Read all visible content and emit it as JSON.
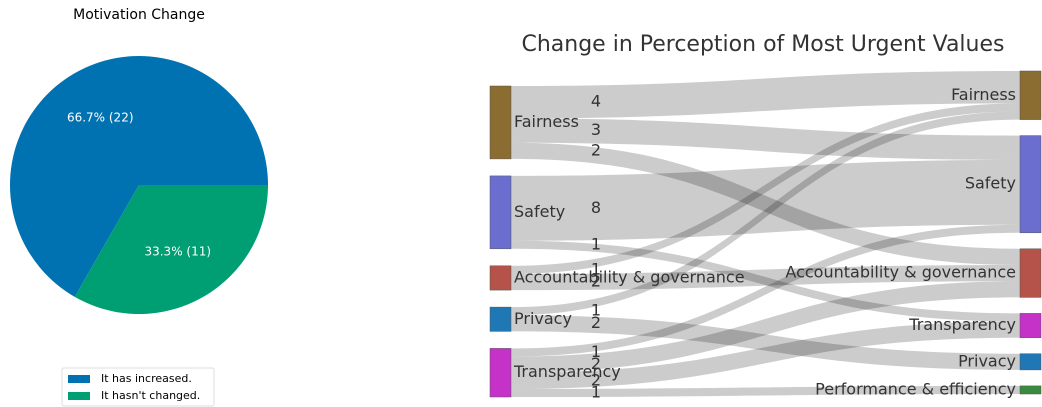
{
  "chart_data": [
    {
      "type": "pie",
      "title": "Motivation Change",
      "labels": [
        "It has increased.",
        "It hasn't changed."
      ],
      "values": [
        66.7,
        33.3
      ],
      "value_labels": [
        "66.7% (22)",
        "33.3% (11)"
      ],
      "colors": [
        "#0072b2",
        "#009e73"
      ],
      "legend": "lower center"
    },
    {
      "type": "sankey",
      "title": "Change in Perception of Most Urgent Values",
      "nodes": [
        {
          "name": "Fairness",
          "color": "#8c6d31",
          "side": "left"
        },
        {
          "name": "Safety",
          "color": "#6b6ecf",
          "side": "left"
        },
        {
          "name": "Accountability & governance",
          "color": "#b5534a",
          "side": "left"
        },
        {
          "name": "Privacy",
          "color": "#1f77b4",
          "side": "left"
        },
        {
          "name": "Transparency",
          "color": "#c532c8",
          "side": "left"
        },
        {
          "name": "Fairness",
          "color": "#8c6d31",
          "side": "right"
        },
        {
          "name": "Safety",
          "color": "#6b6ecf",
          "side": "right"
        },
        {
          "name": "Accountability & governance",
          "color": "#b5534a",
          "side": "right"
        },
        {
          "name": "Transparency",
          "color": "#c532c8",
          "side": "right"
        },
        {
          "name": "Privacy",
          "color": "#1f77b4",
          "side": "right"
        },
        {
          "name": "Performance & efficiency",
          "color": "#3a8a3f",
          "side": "right"
        }
      ],
      "links": [
        {
          "source": 0,
          "target": 5,
          "value": 4
        },
        {
          "source": 0,
          "target": 6,
          "value": 3
        },
        {
          "source": 0,
          "target": 7,
          "value": 2
        },
        {
          "source": 1,
          "target": 6,
          "value": 8
        },
        {
          "source": 1,
          "target": 8,
          "value": 1
        },
        {
          "source": 2,
          "target": 5,
          "value": 1
        },
        {
          "source": 2,
          "target": 7,
          "value": 2
        },
        {
          "source": 3,
          "target": 5,
          "value": 1
        },
        {
          "source": 3,
          "target": 9,
          "value": 2
        },
        {
          "source": 4,
          "target": 6,
          "value": 1
        },
        {
          "source": 4,
          "target": 7,
          "value": 2
        },
        {
          "source": 4,
          "target": 8,
          "value": 2
        },
        {
          "source": 4,
          "target": 10,
          "value": 1
        }
      ]
    }
  ]
}
